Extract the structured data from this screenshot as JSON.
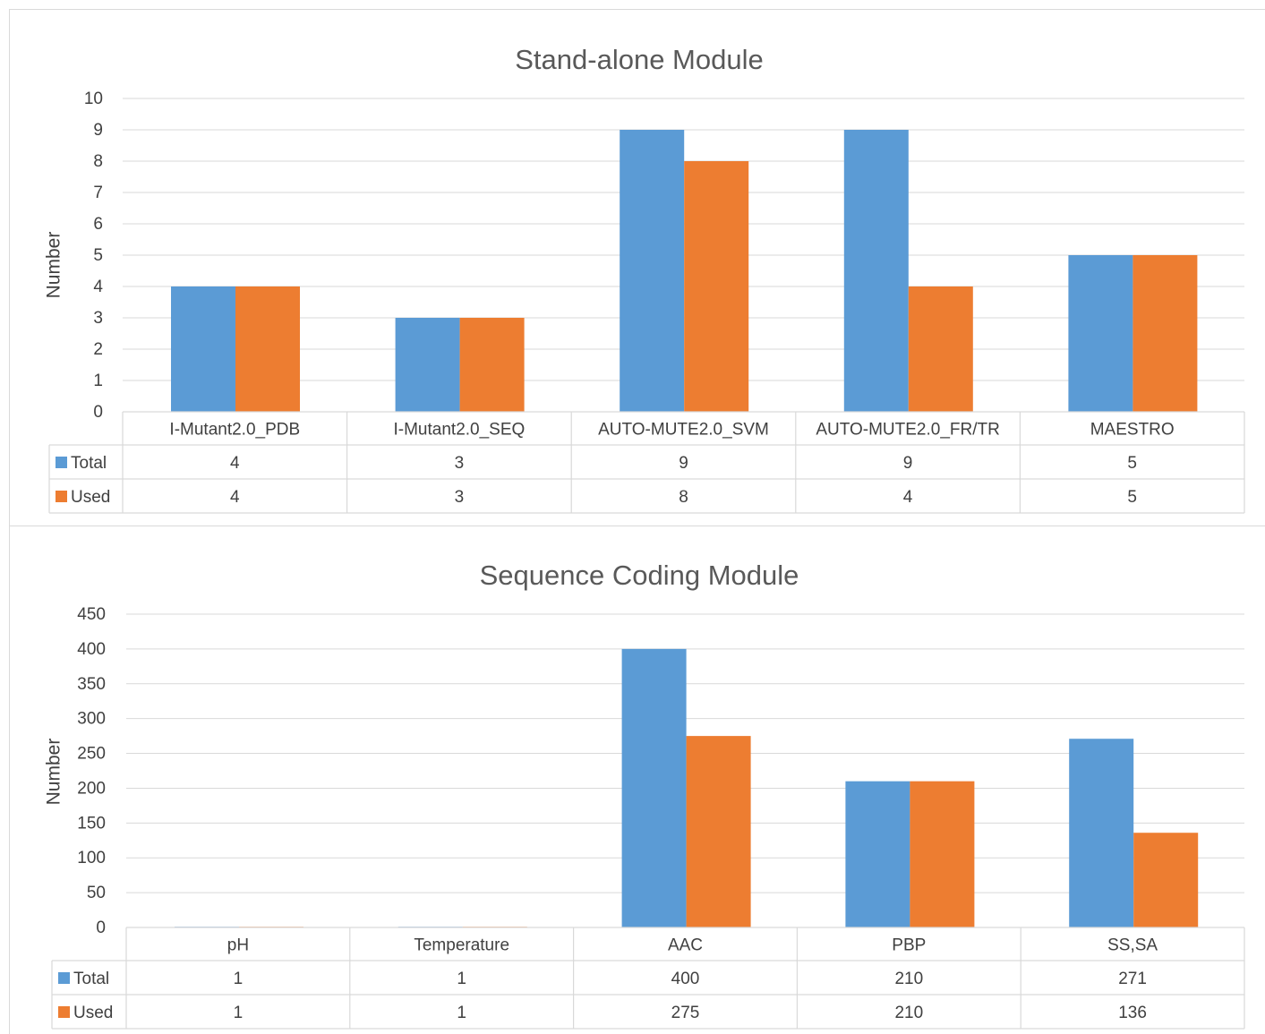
{
  "colors": {
    "total": "#5b9bd5",
    "used": "#ed7d31",
    "grid": "#d9d9d9",
    "text": "#404040",
    "title": "#595959"
  },
  "chart_data": [
    {
      "type": "bar",
      "title": "Stand-alone Module",
      "ylabel": "Number",
      "xlabel": "",
      "ylim": [
        0,
        10
      ],
      "yticks": [
        "0",
        "1",
        "2",
        "3",
        "4",
        "5",
        "6",
        "7",
        "8",
        "9",
        "10"
      ],
      "grid": true,
      "legend": "data-table",
      "categories": [
        "I-Mutant2.0_PDB",
        "I-Mutant2.0_SEQ",
        "AUTO-MUTE2.0_SVM",
        "AUTO-MUTE2.0_FR/TR",
        "MAESTRO"
      ],
      "series": [
        {
          "name": "Total",
          "values": [
            4,
            3,
            9,
            9,
            5
          ]
        },
        {
          "name": "Used",
          "values": [
            4,
            3,
            8,
            4,
            5
          ]
        }
      ],
      "table": {
        "rows": [
          {
            "name": "Total",
            "cells": [
              "4",
              "3",
              "9",
              "9",
              "5"
            ]
          },
          {
            "name": "Used",
            "cells": [
              "4",
              "3",
              "8",
              "4",
              "5"
            ]
          }
        ]
      }
    },
    {
      "type": "bar",
      "title": "Sequence Coding Module",
      "ylabel": "Number",
      "xlabel": "",
      "ylim": [
        0,
        450
      ],
      "yticks": [
        "0",
        "50",
        "100",
        "150",
        "200",
        "250",
        "300",
        "350",
        "400",
        "450"
      ],
      "grid": true,
      "legend": "data-table",
      "categories": [
        "pH",
        "Temperature",
        "AAC",
        "PBP",
        "SS,SA"
      ],
      "series": [
        {
          "name": "Total",
          "values": [
            1,
            1,
            400,
            210,
            271
          ]
        },
        {
          "name": "Used",
          "values": [
            1,
            1,
            275,
            210,
            136
          ]
        }
      ],
      "table": {
        "rows": [
          {
            "name": "Total",
            "cells": [
              "1",
              "1",
              "400",
              "210",
              "271"
            ]
          },
          {
            "name": "Used",
            "cells": [
              "1",
              "1",
              "275",
              "210",
              "136"
            ]
          }
        ]
      }
    }
  ]
}
